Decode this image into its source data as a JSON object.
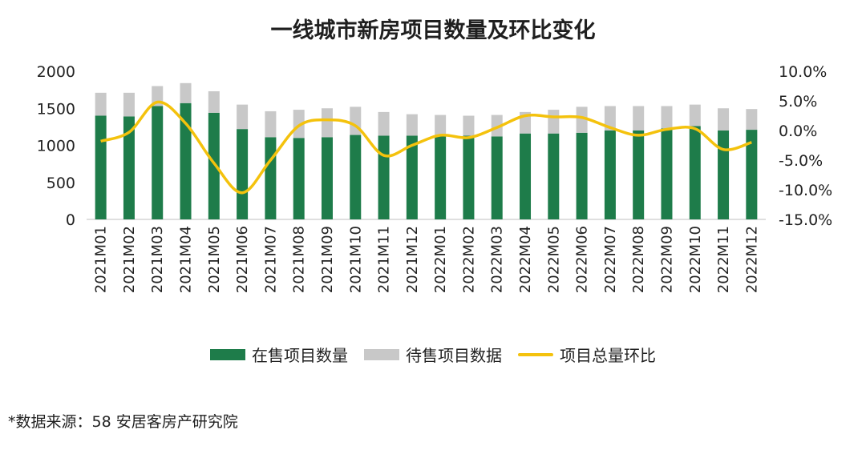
{
  "chart_data": {
    "type": "bar",
    "title": "一线城市新房项目数量及环比变化",
    "categories": [
      "2021M01",
      "2021M02",
      "2021M03",
      "2021M04",
      "2021M05",
      "2021M06",
      "2021M07",
      "2021M08",
      "2021M09",
      "2021M10",
      "2021M11",
      "2021M12",
      "2022M01",
      "2022M02",
      "2022M03",
      "2022M04",
      "2022M05",
      "2022M06",
      "2022M07",
      "2022M08",
      "2022M09",
      "2022M10",
      "2022M11",
      "2022M12"
    ],
    "series": [
      {
        "name": "在售项目数量",
        "kind": "stacked-bar",
        "color": "#1e7c4a",
        "values": [
          1400,
          1390,
          1530,
          1570,
          1440,
          1220,
          1110,
          1100,
          1110,
          1140,
          1130,
          1130,
          1130,
          1130,
          1120,
          1160,
          1160,
          1170,
          1200,
          1200,
          1230,
          1260,
          1200,
          1210
        ]
      },
      {
        "name": "待售项目数据",
        "kind": "stacked-bar",
        "color": "#c8c8c8",
        "values": [
          310,
          320,
          270,
          270,
          290,
          330,
          350,
          380,
          390,
          380,
          320,
          290,
          280,
          270,
          290,
          290,
          320,
          350,
          330,
          330,
          300,
          290,
          300,
          280
        ]
      },
      {
        "name": "项目总量环比",
        "kind": "line",
        "axis": "right",
        "color": "#f4c20d",
        "values": [
          -1.8,
          -0.3,
          4.8,
          1.2,
          -5.5,
          -10.5,
          -5.0,
          0.8,
          1.8,
          0.8,
          -4.2,
          -2.5,
          -0.8,
          -1.2,
          0.5,
          2.5,
          2.3,
          2.2,
          0.5,
          -0.8,
          0.2,
          0.3,
          -3.2,
          -2.0
        ]
      }
    ],
    "yleft": {
      "min": 0,
      "max": 2000,
      "ticks": [
        "0",
        "500",
        "1000",
        "1500",
        "2000"
      ]
    },
    "yright": {
      "min": -15,
      "max": 10,
      "ticks": [
        "-15.0%",
        "-10.0%",
        "-5.0%",
        "0.0%",
        "5.0%",
        "10.0%"
      ]
    },
    "legend_position": "bottom",
    "grid": false
  },
  "source": "*数据来源：58 安居客房产研究院"
}
